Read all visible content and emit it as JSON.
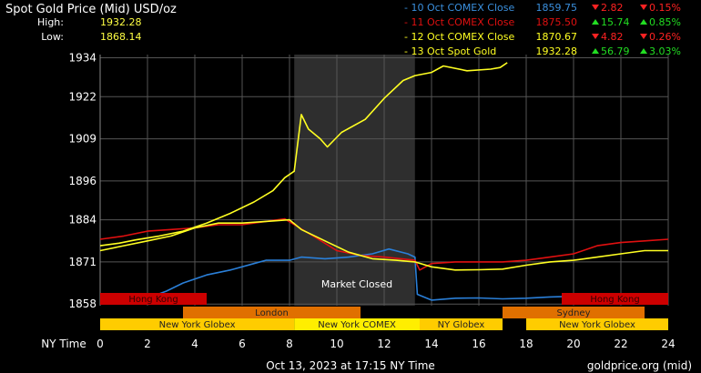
{
  "header": {
    "title": "Spot Gold Price (Mid) USD/oz",
    "high_label": "High:",
    "high_value": "1932.28",
    "low_label": "Low:",
    "low_value": "1868.14"
  },
  "legend": [
    {
      "label": "- 10 Oct COMEX Close",
      "price": "1859.75",
      "change": "2.82",
      "change_dir": "down",
      "pct": "0.15%",
      "color": "#3a8fdd"
    },
    {
      "label": "- 11 Oct COMEX Close",
      "price": "1875.50",
      "change": "15.74",
      "change_dir": "up",
      "pct": "0.85%",
      "color": "#e01010"
    },
    {
      "label": "- 12 Oct COMEX Close",
      "price": "1870.67",
      "change": "4.82",
      "change_dir": "down",
      "pct": "0.26%",
      "color": "#ffff22"
    },
    {
      "label": "- 13 Oct Spot Gold",
      "price": "1932.28",
      "change": "56.79",
      "change_dir": "up",
      "pct": "3.03%",
      "color": "#ffff22"
    }
  ],
  "market_closed_label": "Market Closed",
  "sessions": [
    {
      "name": "Hong Kong",
      "start": 0,
      "end": 4.5,
      "row": 0,
      "color": "#cc0000"
    },
    {
      "name": "Hong Kong",
      "start": 19.5,
      "end": 24,
      "row": 0,
      "color": "#cc0000"
    },
    {
      "name": "London",
      "start": 3.5,
      "end": 11,
      "row": 1,
      "color": "#e07000"
    },
    {
      "name": "Sydney",
      "start": 17,
      "end": 23,
      "row": 1,
      "color": "#e07000"
    },
    {
      "name": "New York Globex",
      "start": 0,
      "end": 8.2,
      "row": 2,
      "color": "#ffcc00"
    },
    {
      "name": "New York COMEX",
      "start": 8.2,
      "end": 13.5,
      "row": 2,
      "color": "#ffee00"
    },
    {
      "name": "NY Globex",
      "start": 13.5,
      "end": 17,
      "row": 2,
      "color": "#ffcc00"
    },
    {
      "name": "New York Globex",
      "start": 18,
      "end": 24,
      "row": 2,
      "color": "#ffcc00"
    }
  ],
  "x_axis_title": "NY Time",
  "footer_time": "Oct 13, 2023 at 17:15 NY Time",
  "footer_source": "goldprice.org (mid)",
  "chart_data": {
    "type": "line",
    "title": "Spot Gold Price (Mid) USD/oz",
    "xlabel": "NY Time",
    "x_ticks": [
      0,
      2,
      4,
      6,
      8,
      10,
      12,
      14,
      16,
      18,
      20,
      22,
      24
    ],
    "y_ticks": [
      1858,
      1871,
      1884,
      1896,
      1909,
      1922,
      1934
    ],
    "xlim": [
      0,
      24
    ],
    "ylim": [
      1857.5,
      1935
    ],
    "grid": true,
    "market_closed_range": [
      8.2,
      13.3
    ],
    "series": [
      {
        "name": "10 Oct COMEX Close",
        "color": "#2a7fd8",
        "points": [
          [
            0,
            1859.6
          ],
          [
            1,
            1859.4
          ],
          [
            2,
            1859.8
          ],
          [
            2.8,
            1862
          ],
          [
            3.5,
            1864.5
          ],
          [
            4.5,
            1867
          ],
          [
            5.5,
            1868.5
          ],
          [
            6.5,
            1870.5
          ],
          [
            7,
            1871.5
          ],
          [
            8,
            1871.5
          ],
          [
            8.5,
            1872.5
          ],
          [
            9.5,
            1872
          ],
          [
            10.5,
            1872.5
          ],
          [
            11.5,
            1873.5
          ],
          [
            12.2,
            1875
          ],
          [
            13,
            1873.5
          ],
          [
            13.3,
            1872.5
          ],
          [
            13.4,
            1861
          ],
          [
            14,
            1859.2
          ],
          [
            15,
            1859.8
          ],
          [
            16,
            1859.9
          ],
          [
            17,
            1859.6
          ],
          [
            18,
            1859.8
          ],
          [
            19,
            1860.2
          ],
          [
            20,
            1860.4
          ],
          [
            21,
            1860.6
          ],
          [
            22,
            1860.4
          ],
          [
            23,
            1860.6
          ],
          [
            24,
            1860
          ]
        ]
      },
      {
        "name": "11 Oct COMEX Close",
        "color": "#e01010",
        "points": [
          [
            0,
            1878
          ],
          [
            1,
            1879
          ],
          [
            2,
            1880.5
          ],
          [
            3,
            1881
          ],
          [
            4,
            1881.5
          ],
          [
            5,
            1882.5
          ],
          [
            6,
            1882.5
          ],
          [
            7,
            1883.5
          ],
          [
            7.8,
            1884.3
          ],
          [
            8.2,
            1882.5
          ],
          [
            9,
            1879
          ],
          [
            10,
            1874.5
          ],
          [
            11,
            1873
          ],
          [
            12,
            1872.5
          ],
          [
            13.3,
            1871.5
          ],
          [
            13.5,
            1868.5
          ],
          [
            14,
            1870.5
          ],
          [
            15,
            1871
          ],
          [
            16,
            1871
          ],
          [
            17,
            1871
          ],
          [
            18,
            1871.5
          ],
          [
            19,
            1872.5
          ],
          [
            20,
            1873.5
          ],
          [
            21,
            1876
          ],
          [
            22,
            1877
          ],
          [
            23,
            1877.5
          ],
          [
            24,
            1878
          ]
        ]
      },
      {
        "name": "12 Oct COMEX Close",
        "color": "#ffff22",
        "points": [
          [
            0,
            1874.5
          ],
          [
            1,
            1876
          ],
          [
            2,
            1877.5
          ],
          [
            3,
            1879
          ],
          [
            4,
            1881.5
          ],
          [
            5,
            1883
          ],
          [
            6,
            1883
          ],
          [
            7,
            1883.5
          ],
          [
            8,
            1884
          ],
          [
            8.5,
            1881
          ],
          [
            9.5,
            1877.5
          ],
          [
            10.5,
            1874
          ],
          [
            11.5,
            1872
          ],
          [
            12.5,
            1871.5
          ],
          [
            13.3,
            1871
          ],
          [
            14,
            1869.5
          ],
          [
            15,
            1868.5
          ],
          [
            16,
            1868.6
          ],
          [
            17,
            1868.8
          ],
          [
            18,
            1870
          ],
          [
            19,
            1871
          ],
          [
            20,
            1871.5
          ],
          [
            21,
            1872.5
          ],
          [
            22,
            1873.5
          ],
          [
            23,
            1874.5
          ],
          [
            24,
            1874.5
          ]
        ]
      },
      {
        "name": "13 Oct Spot Gold",
        "color": "#ffff22",
        "points": [
          [
            0,
            1876
          ],
          [
            0.8,
            1876.8
          ],
          [
            1.5,
            1877.8
          ],
          [
            2.5,
            1879
          ],
          [
            3.5,
            1880.5
          ],
          [
            4.5,
            1883
          ],
          [
            5.5,
            1886
          ],
          [
            6.5,
            1889.5
          ],
          [
            7.3,
            1893
          ],
          [
            7.8,
            1897
          ],
          [
            8.2,
            1899
          ],
          [
            8.5,
            1916.5
          ],
          [
            8.8,
            1912
          ],
          [
            9.3,
            1909
          ],
          [
            9.6,
            1906.5
          ],
          [
            10.2,
            1911
          ],
          [
            11.2,
            1915
          ],
          [
            12,
            1921.5
          ],
          [
            12.8,
            1927
          ],
          [
            13.3,
            1928.5
          ],
          [
            14,
            1929.5
          ],
          [
            14.5,
            1931.5
          ],
          [
            15.5,
            1930
          ],
          [
            16.5,
            1930.5
          ],
          [
            16.9,
            1931
          ],
          [
            17.2,
            1932.5
          ]
        ]
      }
    ]
  }
}
